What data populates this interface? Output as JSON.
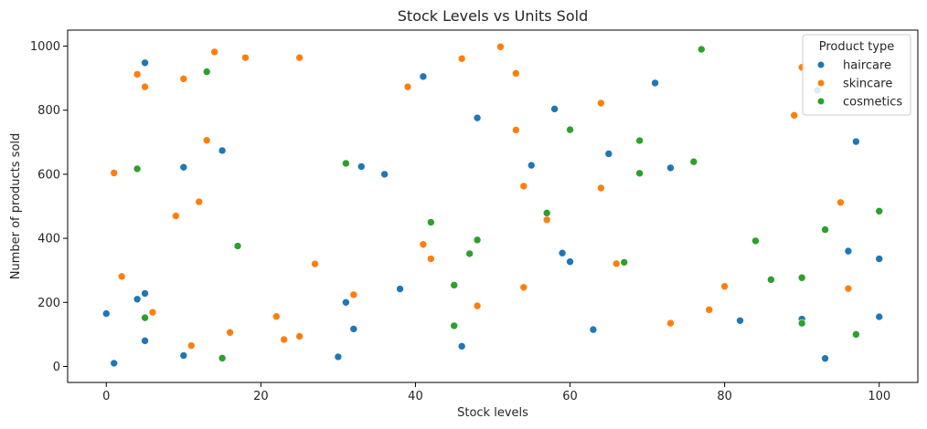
{
  "chart_data": {
    "type": "scatter",
    "title": "Stock Levels vs Units Sold",
    "xlabel": "Stock levels",
    "ylabel": "Number of products sold",
    "xlim": [
      -5,
      105
    ],
    "ylim": [
      -50,
      1050
    ],
    "xticks": [
      0,
      20,
      40,
      60,
      80,
      100
    ],
    "yticks": [
      0,
      200,
      400,
      600,
      800,
      1000
    ],
    "grid": false,
    "legend_title": "Product type",
    "legend_position": "top-right",
    "series": [
      {
        "name": "haircare",
        "color": "#1f77b4",
        "points": [
          [
            0,
            165
          ],
          [
            1,
            10
          ],
          [
            4,
            210
          ],
          [
            5,
            228
          ],
          [
            5,
            80
          ],
          [
            5,
            948
          ],
          [
            10,
            622
          ],
          [
            10,
            34
          ],
          [
            15,
            674
          ],
          [
            30,
            30
          ],
          [
            31,
            200
          ],
          [
            32,
            117
          ],
          [
            33,
            624
          ],
          [
            36,
            600
          ],
          [
            38,
            242
          ],
          [
            41,
            905
          ],
          [
            46,
            63
          ],
          [
            48,
            776
          ],
          [
            55,
            628
          ],
          [
            58,
            804
          ],
          [
            59,
            354
          ],
          [
            60,
            327
          ],
          [
            63,
            115
          ],
          [
            65,
            664
          ],
          [
            71,
            885
          ],
          [
            73,
            620
          ],
          [
            82,
            143
          ],
          [
            90,
            148
          ],
          [
            92,
            862
          ],
          [
            93,
            25
          ],
          [
            96,
            360
          ],
          [
            97,
            702
          ],
          [
            100,
            336
          ],
          [
            100,
            155
          ]
        ]
      },
      {
        "name": "skincare",
        "color": "#ff7f0e",
        "points": [
          [
            1,
            604
          ],
          [
            2,
            281
          ],
          [
            4,
            912
          ],
          [
            5,
            873
          ],
          [
            6,
            169
          ],
          [
            9,
            470
          ],
          [
            10,
            898
          ],
          [
            11,
            65
          ],
          [
            12,
            514
          ],
          [
            13,
            706
          ],
          [
            14,
            982
          ],
          [
            16,
            106
          ],
          [
            18,
            964
          ],
          [
            22,
            156
          ],
          [
            23,
            84
          ],
          [
            25,
            94
          ],
          [
            25,
            964
          ],
          [
            27,
            320
          ],
          [
            32,
            224
          ],
          [
            39,
            873
          ],
          [
            41,
            381
          ],
          [
            42,
            336
          ],
          [
            46,
            961
          ],
          [
            48,
            189
          ],
          [
            51,
            998
          ],
          [
            53,
            915
          ],
          [
            53,
            738
          ],
          [
            54,
            563
          ],
          [
            54,
            247
          ],
          [
            57,
            458
          ],
          [
            64,
            822
          ],
          [
            64,
            557
          ],
          [
            66,
            321
          ],
          [
            73,
            135
          ],
          [
            78,
            177
          ],
          [
            80,
            250
          ],
          [
            89,
            784
          ],
          [
            90,
            934
          ],
          [
            95,
            512
          ],
          [
            96,
            243
          ]
        ]
      },
      {
        "name": "cosmetics",
        "color": "#2ca02c",
        "points": [
          [
            4,
            617
          ],
          [
            5,
            152
          ],
          [
            13,
            920
          ],
          [
            15,
            26
          ],
          [
            17,
            376
          ],
          [
            31,
            634
          ],
          [
            42,
            450
          ],
          [
            45,
            254
          ],
          [
            45,
            127
          ],
          [
            47,
            352
          ],
          [
            48,
            395
          ],
          [
            57,
            479
          ],
          [
            60,
            739
          ],
          [
            67,
            325
          ],
          [
            69,
            705
          ],
          [
            69,
            603
          ],
          [
            76,
            639
          ],
          [
            77,
            990
          ],
          [
            84,
            392
          ],
          [
            86,
            271
          ],
          [
            90,
            277
          ],
          [
            90,
            135
          ],
          [
            93,
            427
          ],
          [
            97,
            100
          ],
          [
            100,
            485
          ]
        ]
      }
    ]
  }
}
